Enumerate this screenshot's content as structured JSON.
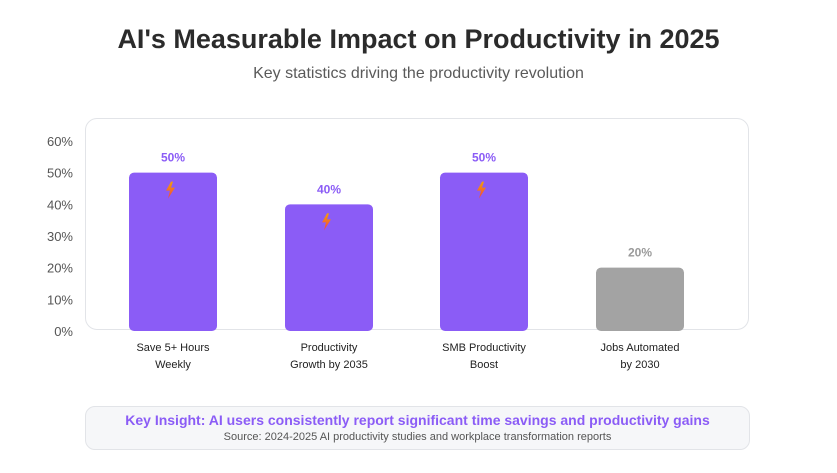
{
  "header": {
    "title": "AI's Measurable Impact on Productivity in 2025",
    "subtitle": "Key statistics driving the productivity revolution"
  },
  "chart_data": {
    "type": "bar",
    "categories": [
      [
        "Save 5+ Hours",
        "Weekly"
      ],
      [
        "Productivity",
        "Growth by 2035"
      ],
      [
        "SMB Productivity",
        "Boost"
      ],
      [
        "Jobs Automated",
        "by 2030"
      ]
    ],
    "values": [
      50,
      40,
      50,
      20
    ],
    "value_labels": [
      "50%",
      "40%",
      "50%",
      "20%"
    ],
    "bar_colors": [
      "#8b5cf6",
      "#8b5cf6",
      "#8b5cf6",
      "#a3a3a3"
    ],
    "label_colors": [
      "#8b5cf6",
      "#8b5cf6",
      "#8b5cf6",
      "#9a9a9a"
    ],
    "icons": [
      "lightning-icon",
      "lightning-icon",
      "lightning-icon",
      null
    ],
    "y_ticks": [
      "0%",
      "10%",
      "20%",
      "30%",
      "40%",
      "50%",
      "60%"
    ],
    "ylim": [
      0,
      60
    ],
    "grid": false
  },
  "insight": {
    "title": "Key Insight: AI users consistently report significant time savings and productivity gains",
    "source": "Source: 2024-2025 AI productivity studies and workplace transformation reports"
  }
}
